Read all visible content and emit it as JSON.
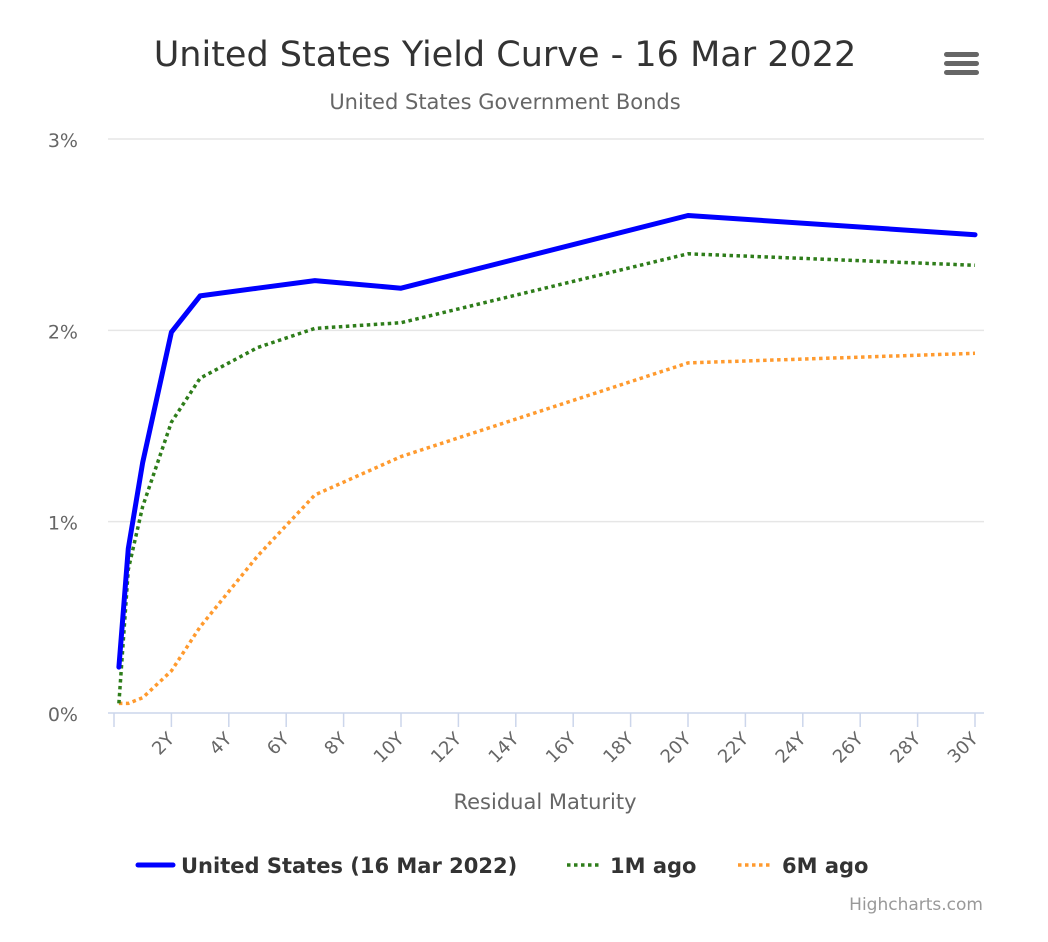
{
  "chart_data": {
    "type": "line",
    "title": "United States Yield Curve - 16 Mar 2022",
    "subtitle": "United States Government Bonds",
    "xlabel": "Residual Maturity",
    "ylabel": "",
    "xlim": [
      0,
      30
    ],
    "ylim": [
      0,
      3
    ],
    "x_tick_values": [
      2,
      4,
      6,
      8,
      10,
      12,
      14,
      16,
      18,
      20,
      22,
      24,
      26,
      28,
      30
    ],
    "x_tick_labels": [
      "2Y",
      "4Y",
      "6Y",
      "8Y",
      "10Y",
      "12Y",
      "14Y",
      "16Y",
      "18Y",
      "20Y",
      "22Y",
      "24Y",
      "26Y",
      "28Y",
      "30Y"
    ],
    "y_tick_values": [
      0,
      1,
      2,
      3
    ],
    "y_tick_labels": [
      "0%",
      "1%",
      "2%",
      "3%"
    ],
    "grid": true,
    "legend_position": "bottom",
    "series": [
      {
        "name": "United States (16 Mar 2022)",
        "color": "#0000ff",
        "dash": "solid",
        "x": [
          0.17,
          0.5,
          1,
          2,
          3,
          5,
          7,
          10,
          20,
          30
        ],
        "values": [
          0.24,
          0.86,
          1.31,
          1.99,
          2.18,
          2.22,
          2.26,
          2.22,
          2.6,
          2.5
        ]
      },
      {
        "name": "1M ago",
        "color": "#2e7d1a",
        "dash": "dotted",
        "x": [
          0.17,
          0.5,
          1,
          2,
          3,
          5,
          7,
          10,
          20,
          30
        ],
        "values": [
          0.05,
          0.75,
          1.08,
          1.52,
          1.75,
          1.91,
          2.01,
          2.04,
          2.4,
          2.34
        ]
      },
      {
        "name": "6M ago",
        "color": "#ff9a2e",
        "dash": "dotted",
        "x": [
          0.17,
          0.5,
          1,
          2,
          3,
          5,
          7,
          10,
          20,
          30
        ],
        "values": [
          0.05,
          0.05,
          0.08,
          0.22,
          0.45,
          0.82,
          1.14,
          1.34,
          1.83,
          1.88
        ]
      }
    ]
  },
  "menu_icon": "hamburger-menu-icon",
  "credits": "Highcharts.com"
}
